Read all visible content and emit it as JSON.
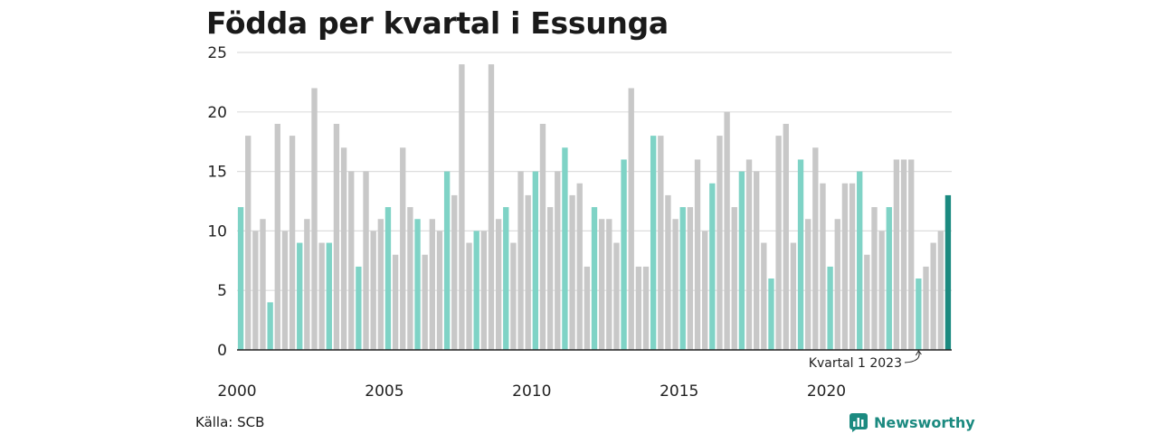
{
  "title": "Födda per kvartal i Essunga",
  "source": "Källa: SCB",
  "brand": "Newsworthy",
  "colors": {
    "q1": "#7fd3c6",
    "other": "#c8c8c8",
    "latest": "#1b8a80",
    "grid": "#dddddd",
    "axis": "#222222"
  },
  "chart_data": {
    "type": "bar",
    "title": "Födda per kvartal i Essunga",
    "xlabel": "",
    "ylabel": "",
    "ylim": [
      0,
      25
    ],
    "y_ticks": [
      "0",
      "5",
      "10",
      "15",
      "20",
      "25"
    ],
    "x_ticks": [
      {
        "year": 2000,
        "label": "2000"
      },
      {
        "year": 2005,
        "label": "2005"
      },
      {
        "year": 2010,
        "label": "2010"
      },
      {
        "year": 2015,
        "label": "2015"
      },
      {
        "year": 2020,
        "label": "2020"
      }
    ],
    "start_year": 2000,
    "values": [
      12,
      18,
      10,
      11,
      4,
      19,
      10,
      18,
      9,
      11,
      22,
      9,
      9,
      19,
      17,
      15,
      7,
      15,
      10,
      11,
      12,
      8,
      17,
      12,
      11,
      8,
      11,
      10,
      15,
      13,
      24,
      9,
      10,
      10,
      24,
      11,
      12,
      9,
      15,
      13,
      15,
      19,
      12,
      15,
      17,
      13,
      14,
      7,
      12,
      11,
      11,
      9,
      16,
      22,
      7,
      7,
      18,
      18,
      13,
      11,
      12,
      12,
      16,
      10,
      14,
      18,
      20,
      12,
      15,
      16,
      15,
      9,
      6,
      18,
      19,
      9,
      16,
      11,
      17,
      14,
      7,
      11,
      14,
      14,
      15,
      8,
      12,
      10,
      12,
      16,
      16,
      16,
      6,
      7,
      9,
      10,
      13
    ],
    "annotation": "Kvartal 1 2023",
    "grid": true,
    "legend": "none"
  }
}
